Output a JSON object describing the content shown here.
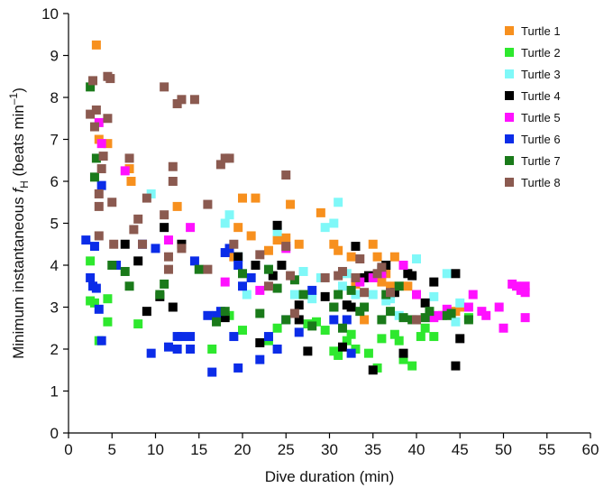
{
  "chart_data": {
    "type": "scatter",
    "xlabel": "Dive duration (min)",
    "ylabel": {
      "prefix": "Minimum instantaneous ",
      "var": "f",
      "sub": "H",
      "suffix": " (beats min",
      "sup": "–1",
      "close": ")"
    },
    "xlim": [
      0,
      60
    ],
    "ylim": [
      0,
      10
    ],
    "xticks": [
      0,
      5,
      10,
      15,
      20,
      25,
      30,
      35,
      40,
      45,
      50,
      55,
      60
    ],
    "yticks": [
      0,
      1,
      2,
      3,
      4,
      5,
      6,
      7,
      8,
      9,
      10
    ],
    "grid": false,
    "legend_position": "top-right",
    "series": [
      {
        "name": "Turtle 1",
        "color": "#f7901e",
        "points": [
          [
            3.2,
            9.25
          ],
          [
            3.5,
            7.0
          ],
          [
            4.5,
            6.9
          ],
          [
            7.0,
            6.3
          ],
          [
            7.2,
            6.0
          ],
          [
            12.5,
            5.4
          ],
          [
            19.0,
            4.2
          ],
          [
            19.5,
            4.9
          ],
          [
            20.0,
            5.6
          ],
          [
            21.0,
            4.7
          ],
          [
            21.5,
            5.6
          ],
          [
            23.0,
            4.35
          ],
          [
            24.0,
            4.6
          ],
          [
            25.0,
            4.65
          ],
          [
            25.5,
            5.45
          ],
          [
            26.5,
            4.5
          ],
          [
            29.0,
            5.25
          ],
          [
            30.5,
            4.5
          ],
          [
            31.0,
            4.35
          ],
          [
            32.5,
            4.2
          ],
          [
            33.0,
            3.55
          ],
          [
            34.0,
            2.7
          ],
          [
            35.0,
            4.5
          ],
          [
            35.5,
            4.2
          ],
          [
            36.0,
            3.6
          ],
          [
            36.5,
            3.8
          ],
          [
            37.0,
            3.5
          ],
          [
            37.5,
            4.2
          ],
          [
            39.0,
            3.5
          ],
          [
            40.0,
            3.3
          ],
          [
            44.5,
            2.9
          ],
          [
            45.5,
            3.0
          ]
        ]
      },
      {
        "name": "Turtle 2",
        "color": "#2ee82e",
        "points": [
          [
            2.5,
            4.1
          ],
          [
            2.5,
            3.15
          ],
          [
            3.0,
            3.1
          ],
          [
            3.5,
            2.2
          ],
          [
            4.5,
            3.2
          ],
          [
            4.5,
            2.65
          ],
          [
            8.0,
            2.6
          ],
          [
            16.5,
            2.0
          ],
          [
            18.5,
            2.8
          ],
          [
            20.0,
            2.45
          ],
          [
            23.0,
            2.2
          ],
          [
            24.0,
            2.5
          ],
          [
            27.5,
            2.6
          ],
          [
            28.5,
            2.65
          ],
          [
            29.5,
            2.45
          ],
          [
            30.5,
            1.95
          ],
          [
            31.0,
            1.85
          ],
          [
            32.0,
            2.2
          ],
          [
            32.5,
            2.35
          ],
          [
            33.0,
            2.0
          ],
          [
            34.5,
            1.9
          ],
          [
            35.5,
            1.55
          ],
          [
            36.0,
            2.25
          ],
          [
            37.5,
            2.35
          ],
          [
            38.0,
            2.2
          ],
          [
            38.5,
            1.75
          ],
          [
            39.5,
            1.6
          ],
          [
            40.5,
            2.3
          ],
          [
            41.0,
            2.5
          ],
          [
            42.0,
            2.3
          ],
          [
            43.0,
            2.8
          ],
          [
            46.0,
            2.75
          ]
        ]
      },
      {
        "name": "Turtle 3",
        "color": "#7ff8f8",
        "points": [
          [
            9.5,
            5.7
          ],
          [
            18.0,
            5.0
          ],
          [
            18.5,
            5.2
          ],
          [
            19.5,
            4.2
          ],
          [
            20.5,
            3.3
          ],
          [
            23.0,
            3.9
          ],
          [
            24.0,
            4.8
          ],
          [
            26.0,
            3.3
          ],
          [
            27.0,
            3.85
          ],
          [
            28.0,
            3.2
          ],
          [
            29.0,
            3.7
          ],
          [
            29.5,
            4.9
          ],
          [
            30.5,
            5.0
          ],
          [
            31.0,
            5.5
          ],
          [
            31.5,
            3.5
          ],
          [
            32.0,
            3.8
          ],
          [
            33.0,
            3.3
          ],
          [
            34.0,
            3.7
          ],
          [
            35.0,
            3.3
          ],
          [
            36.5,
            3.15
          ],
          [
            37.0,
            3.2
          ],
          [
            38.0,
            2.8
          ],
          [
            40.0,
            4.15
          ],
          [
            42.0,
            3.25
          ],
          [
            43.5,
            3.8
          ],
          [
            44.5,
            2.65
          ],
          [
            45.0,
            3.1
          ]
        ]
      },
      {
        "name": "Turtle 4",
        "color": "#000000",
        "points": [
          [
            6.5,
            4.5
          ],
          [
            8.0,
            4.1
          ],
          [
            9.0,
            2.9
          ],
          [
            10.5,
            3.25
          ],
          [
            11.0,
            4.9
          ],
          [
            12.0,
            3.0
          ],
          [
            13.0,
            4.5
          ],
          [
            18.0,
            2.75
          ],
          [
            19.5,
            4.2
          ],
          [
            21.5,
            4.0
          ],
          [
            22.0,
            2.15
          ],
          [
            23.5,
            3.75
          ],
          [
            24.0,
            4.95
          ],
          [
            24.5,
            4.0
          ],
          [
            26.5,
            3.05
          ],
          [
            26.5,
            2.7
          ],
          [
            27.5,
            1.95
          ],
          [
            29.5,
            3.25
          ],
          [
            30.5,
            3.0
          ],
          [
            31.5,
            2.05
          ],
          [
            32.0,
            3.05
          ],
          [
            32.5,
            3.0
          ],
          [
            33.0,
            4.45
          ],
          [
            34.0,
            3.7
          ],
          [
            34.5,
            3.75
          ],
          [
            35.0,
            1.5
          ],
          [
            36.0,
            3.9
          ],
          [
            36.5,
            4.0
          ],
          [
            37.5,
            3.35
          ],
          [
            38.5,
            1.9
          ],
          [
            39.0,
            3.8
          ],
          [
            39.5,
            3.75
          ],
          [
            40.0,
            2.7
          ],
          [
            41.0,
            3.1
          ],
          [
            42.0,
            3.6
          ],
          [
            44.5,
            3.8
          ],
          [
            45.0,
            2.25
          ],
          [
            44.5,
            1.6
          ]
        ]
      },
      {
        "name": "Turtle 5",
        "color": "#ff11ff",
        "points": [
          [
            3.5,
            7.4
          ],
          [
            3.8,
            6.9
          ],
          [
            6.5,
            6.25
          ],
          [
            11.5,
            4.6
          ],
          [
            14.0,
            4.9
          ],
          [
            18.0,
            3.6
          ],
          [
            22.0,
            3.4
          ],
          [
            25.0,
            4.4
          ],
          [
            33.5,
            3.6
          ],
          [
            35.0,
            3.7
          ],
          [
            36.0,
            3.8
          ],
          [
            38.5,
            4.0
          ],
          [
            40.0,
            3.3
          ],
          [
            42.0,
            2.75
          ],
          [
            42.5,
            2.8
          ],
          [
            43.5,
            2.95
          ],
          [
            46.0,
            3.0
          ],
          [
            46.5,
            3.3
          ],
          [
            47.5,
            2.9
          ],
          [
            48.0,
            2.8
          ],
          [
            49.5,
            3.0
          ],
          [
            50.0,
            2.5
          ],
          [
            51.0,
            3.55
          ],
          [
            51.5,
            3.5
          ],
          [
            52.0,
            3.4
          ],
          [
            52.5,
            3.5
          ],
          [
            52.5,
            3.35
          ],
          [
            52.5,
            2.75
          ]
        ]
      },
      {
        "name": "Turtle 6",
        "color": "#0b2ce8",
        "points": [
          [
            2.0,
            4.6
          ],
          [
            2.5,
            3.7
          ],
          [
            2.8,
            3.5
          ],
          [
            3.0,
            4.45
          ],
          [
            3.2,
            3.45
          ],
          [
            3.5,
            2.95
          ],
          [
            3.8,
            2.2
          ],
          [
            3.8,
            5.9
          ],
          [
            5.5,
            4.0
          ],
          [
            8.5,
            4.5
          ],
          [
            9.5,
            1.9
          ],
          [
            10.0,
            4.4
          ],
          [
            11.5,
            2.05
          ],
          [
            12.5,
            2.0
          ],
          [
            12.5,
            2.3
          ],
          [
            13.0,
            2.3
          ],
          [
            14.0,
            2.3
          ],
          [
            14.0,
            2.0
          ],
          [
            14.5,
            4.1
          ],
          [
            16.0,
            2.8
          ],
          [
            16.5,
            1.45
          ],
          [
            17.0,
            2.8
          ],
          [
            17.5,
            2.9
          ],
          [
            18.0,
            4.3
          ],
          [
            18.5,
            4.4
          ],
          [
            19.0,
            2.3
          ],
          [
            19.5,
            1.55
          ],
          [
            19.5,
            4.0
          ],
          [
            20.0,
            3.5
          ],
          [
            21.0,
            3.7
          ],
          [
            22.0,
            1.75
          ],
          [
            23.0,
            2.3
          ],
          [
            24.0,
            2.0
          ],
          [
            25.0,
            2.7
          ],
          [
            26.5,
            2.4
          ],
          [
            28.0,
            3.4
          ],
          [
            30.5,
            2.7
          ],
          [
            32.0,
            2.7
          ],
          [
            32.5,
            1.9
          ]
        ]
      },
      {
        "name": "Turtle 7",
        "color": "#1a7a1a",
        "points": [
          [
            2.5,
            8.25
          ],
          [
            3.0,
            6.1
          ],
          [
            3.2,
            6.55
          ],
          [
            5.0,
            4.0
          ],
          [
            6.5,
            3.85
          ],
          [
            7.0,
            3.5
          ],
          [
            10.5,
            3.3
          ],
          [
            11.0,
            3.55
          ],
          [
            15.0,
            3.9
          ],
          [
            17.0,
            2.65
          ],
          [
            18.0,
            2.9
          ],
          [
            20.0,
            3.8
          ],
          [
            22.0,
            2.85
          ],
          [
            23.0,
            3.9
          ],
          [
            24.0,
            3.45
          ],
          [
            25.0,
            2.7
          ],
          [
            26.0,
            3.65
          ],
          [
            27.0,
            3.3
          ],
          [
            28.0,
            2.55
          ],
          [
            30.5,
            3.0
          ],
          [
            31.0,
            3.3
          ],
          [
            31.5,
            2.5
          ],
          [
            32.5,
            3.4
          ],
          [
            33.5,
            2.9
          ],
          [
            34.0,
            3.0
          ],
          [
            36.0,
            2.7
          ],
          [
            36.5,
            3.3
          ],
          [
            37.0,
            2.9
          ],
          [
            38.0,
            3.5
          ],
          [
            38.5,
            2.75
          ],
          [
            39.5,
            2.7
          ],
          [
            41.0,
            2.75
          ],
          [
            41.5,
            2.9
          ],
          [
            43.5,
            2.8
          ],
          [
            44.0,
            2.85
          ],
          [
            46.0,
            2.7
          ]
        ]
      },
      {
        "name": "Turtle 8",
        "color": "#8b5a50",
        "points": [
          [
            2.5,
            7.6
          ],
          [
            2.8,
            8.4
          ],
          [
            3.0,
            7.3
          ],
          [
            3.2,
            7.7
          ],
          [
            3.5,
            4.7
          ],
          [
            3.5,
            5.7
          ],
          [
            3.5,
            5.4
          ],
          [
            3.8,
            6.3
          ],
          [
            4.0,
            6.6
          ],
          [
            4.5,
            8.5
          ],
          [
            4.5,
            7.5
          ],
          [
            4.8,
            8.45
          ],
          [
            5.0,
            5.5
          ],
          [
            5.2,
            4.5
          ],
          [
            7.0,
            6.55
          ],
          [
            7.5,
            4.85
          ],
          [
            8.0,
            5.1
          ],
          [
            8.5,
            4.5
          ],
          [
            9.0,
            5.6
          ],
          [
            11.0,
            8.25
          ],
          [
            11.0,
            5.2
          ],
          [
            11.5,
            4.2
          ],
          [
            11.5,
            3.9
          ],
          [
            12.0,
            6.0
          ],
          [
            12.0,
            6.35
          ],
          [
            12.5,
            7.85
          ],
          [
            13.0,
            7.95
          ],
          [
            13.0,
            4.4
          ],
          [
            14.5,
            7.95
          ],
          [
            16.0,
            5.45
          ],
          [
            16.0,
            3.9
          ],
          [
            17.5,
            6.4
          ],
          [
            18.0,
            6.55
          ],
          [
            18.5,
            6.55
          ],
          [
            19.0,
            4.5
          ],
          [
            22.0,
            4.25
          ],
          [
            23.0,
            3.5
          ],
          [
            25.0,
            6.15
          ],
          [
            25.0,
            4.45
          ],
          [
            25.5,
            3.75
          ],
          [
            26.0,
            2.85
          ],
          [
            29.5,
            3.7
          ],
          [
            31.0,
            3.75
          ],
          [
            31.5,
            3.85
          ],
          [
            33.0,
            3.7
          ],
          [
            33.5,
            4.15
          ],
          [
            34.0,
            3.35
          ],
          [
            35.5,
            3.8
          ],
          [
            36.0,
            3.95
          ],
          [
            37.0,
            3.35
          ],
          [
            40.0,
            2.7
          ]
        ]
      }
    ]
  }
}
